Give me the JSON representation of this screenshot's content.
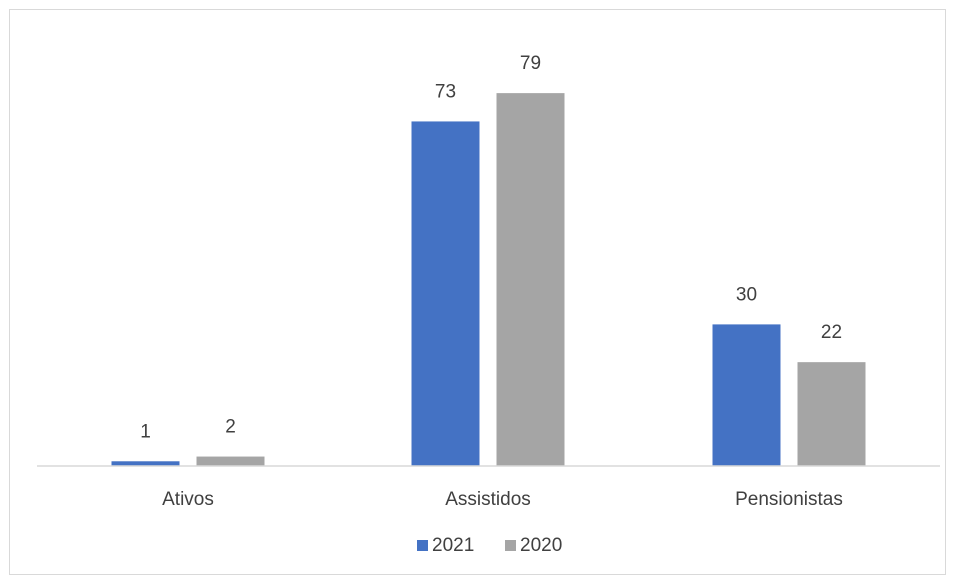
{
  "chart_data": {
    "type": "bar",
    "categories": [
      "Ativos",
      "Assistidos",
      "Pensionistas"
    ],
    "series": [
      {
        "name": "2021",
        "values": [
          1,
          73,
          30
        ],
        "color": "#4472c4"
      },
      {
        "name": "2020",
        "values": [
          2,
          79,
          22
        ],
        "color": "#a5a5a5"
      }
    ],
    "ylim": [
      0,
      80
    ],
    "grid": false,
    "legend": "bottom-center",
    "data_labels": true
  }
}
